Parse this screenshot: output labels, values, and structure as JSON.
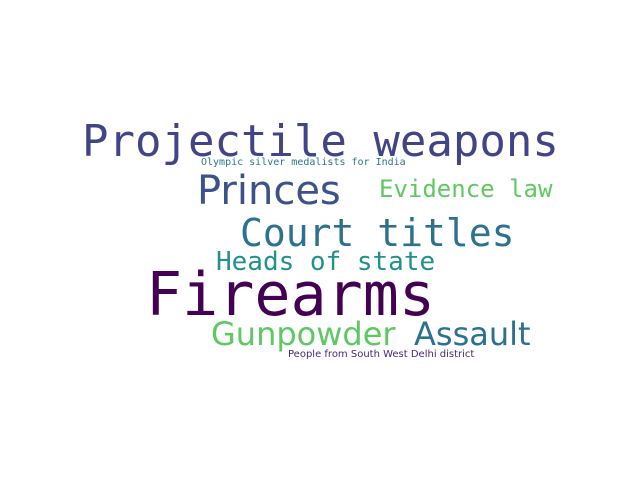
{
  "word_cloud": {
    "words": [
      {
        "text": "Projectile weapons",
        "color": "#414487"
      },
      {
        "text": "Olympic silver medalists for India",
        "color": "#2a788e"
      },
      {
        "text": "Princes",
        "color": "#3b528b"
      },
      {
        "text": "Evidence law",
        "color": "#5ec962"
      },
      {
        "text": "Court titles",
        "color": "#2c728e"
      },
      {
        "text": "Heads of state",
        "color": "#21918c"
      },
      {
        "text": "Firearms",
        "color": "#440154"
      },
      {
        "text": "Gunpowder",
        "color": "#5ec962"
      },
      {
        "text": "Assault",
        "color": "#2c728e"
      },
      {
        "text": "People from South West Delhi district",
        "color": "#482878"
      }
    ]
  }
}
